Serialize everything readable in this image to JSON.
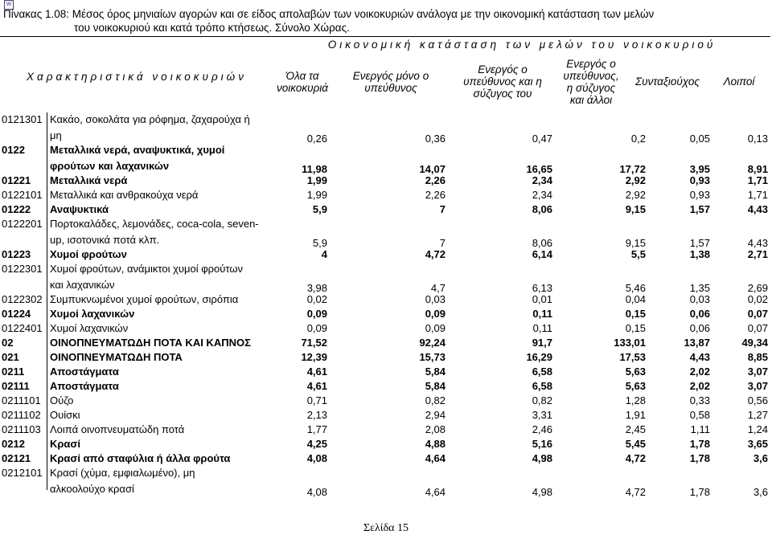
{
  "title_lines": [
    "Πίνακας 1.08: Μέσος όρος μηνιαίων αγορών και σε είδος απολαβών των νοικοκυριών ανάλογα με την οικονομική κατάσταση των μελών",
    "του νοικοκυριού  και κατά τρόπο κτήσεως. Σύνολο Χώρας."
  ],
  "header": {
    "group": "Οικονομική κατάσταση των μελών του νοικοκυριού",
    "row_label": "Χαρακτηριστικά νοικοκυριών",
    "columns": [
      "Όλα τα νοικοκυριά",
      "Ενεργός μόνο ο υπεύθυνος",
      "Ενεργός ο υπεύθυνος και η σύζυγος του",
      "Ενεργός ο υπεύθυνος, η σύζυγος και άλλοι",
      "Συνταξιούχος",
      "Λοιποί"
    ]
  },
  "rows": [
    {
      "code": "0121301",
      "bold": false,
      "lines": [
        "Κακάο, σοκολάτα για ρόφημα, ζαχαρούχα ή",
        "μη"
      ],
      "values": [
        "0,26",
        "0,36",
        "0,47",
        "0,2",
        "0,05",
        "0,13"
      ]
    },
    {
      "code": "0122",
      "bold": true,
      "lines": [
        "Μεταλλικά νερά,  αναψυκτικά, χυμοί",
        "φρούτων και λαχανικών"
      ],
      "values": [
        "11,98",
        "14,07",
        "16,65",
        "17,72",
        "3,95",
        "8,91"
      ]
    },
    {
      "code": "01221",
      "bold": true,
      "lines": [
        "Μεταλλικά νερά"
      ],
      "values": [
        "1,99",
        "2,26",
        "2,34",
        "2,92",
        "0,93",
        "1,71"
      ]
    },
    {
      "code": "0122101",
      "bold": false,
      "lines": [
        "Μεταλλικά και ανθρακούχα νερά"
      ],
      "values": [
        "1,99",
        "2,26",
        "2,34",
        "2,92",
        "0,93",
        "1,71"
      ]
    },
    {
      "code": "01222",
      "bold": true,
      "lines": [
        "Αναψυκτικά"
      ],
      "values": [
        "5,9",
        "7",
        "8,06",
        "9,15",
        "1,57",
        "4,43"
      ]
    },
    {
      "code": "0122201",
      "bold": false,
      "lines": [
        "Πορτοκαλάδες, λεμονάδες, coca-cola, seven-",
        "up, ισοτονικά ποτά κλπ."
      ],
      "values": [
        "5,9",
        "7",
        "8,06",
        "9,15",
        "1,57",
        "4,43"
      ]
    },
    {
      "code": "01223",
      "bold": true,
      "lines": [
        "Χυμοί φρούτων"
      ],
      "values": [
        "4",
        "4,72",
        "6,14",
        "5,5",
        "1,38",
        "2,71"
      ]
    },
    {
      "code": "0122301",
      "bold": false,
      "lines": [
        "Χυμοί φρούτων, ανάμικτοι χυμοί φρούτων",
        "και λαχανικών"
      ],
      "values": [
        "3,98",
        "4,7",
        "6,13",
        "5,46",
        "1,35",
        "2,69"
      ]
    },
    {
      "code": "0122302",
      "bold": false,
      "lines": [
        "Συμπυκνωμένοι χυμοί φρούτων, σιρόπια"
      ],
      "values": [
        "0,02",
        "0,03",
        "0,01",
        "0,04",
        "0,03",
        "0,02"
      ]
    },
    {
      "code": "01224",
      "bold": true,
      "lines": [
        "Χυμοί λαχανικών"
      ],
      "values": [
        "0,09",
        "0,09",
        "0,11",
        "0,15",
        "0,06",
        "0,07"
      ]
    },
    {
      "code": "0122401",
      "bold": false,
      "lines": [
        "Χυμοί λαχανικών"
      ],
      "values": [
        "0,09",
        "0,09",
        "0,11",
        "0,15",
        "0,06",
        "0,07"
      ]
    },
    {
      "code": "02",
      "bold": true,
      "lines": [
        "ΟΙΝΟΠΝΕΥΜΑΤΩΔΗ ΠΟΤΑ ΚΑΙ ΚΑΠΝΟΣ"
      ],
      "values": [
        "71,52",
        "92,24",
        "91,7",
        "133,01",
        "13,87",
        "49,34"
      ]
    },
    {
      "code": "021",
      "bold": true,
      "lines": [
        "ΟΙΝΟΠΝΕΥΜΑΤΩΔΗ ΠΟΤΑ"
      ],
      "values": [
        "12,39",
        "15,73",
        "16,29",
        "17,53",
        "4,43",
        "8,85"
      ]
    },
    {
      "code": "0211",
      "bold": true,
      "lines": [
        "Αποστάγματα"
      ],
      "values": [
        "4,61",
        "5,84",
        "6,58",
        "5,63",
        "2,02",
        "3,07"
      ]
    },
    {
      "code": "02111",
      "bold": true,
      "lines": [
        "Αποστάγματα"
      ],
      "values": [
        "4,61",
        "5,84",
        "6,58",
        "5,63",
        "2,02",
        "3,07"
      ]
    },
    {
      "code": "0211101",
      "bold": false,
      "lines": [
        "Ούζο"
      ],
      "values": [
        "0,71",
        "0,82",
        "0,82",
        "1,28",
        "0,33",
        "0,56"
      ]
    },
    {
      "code": "0211102",
      "bold": false,
      "lines": [
        "Ουίσκι"
      ],
      "values": [
        "2,13",
        "2,94",
        "3,31",
        "1,91",
        "0,58",
        "1,27"
      ]
    },
    {
      "code": "0211103",
      "bold": false,
      "lines": [
        "Λοιπά οινοπνευματώδη ποτά"
      ],
      "values": [
        "1,77",
        "2,08",
        "2,46",
        "2,45",
        "1,11",
        "1,24"
      ]
    },
    {
      "code": "0212",
      "bold": true,
      "lines": [
        "Κρασί"
      ],
      "values": [
        "4,25",
        "4,88",
        "5,16",
        "5,45",
        "1,78",
        "3,65"
      ]
    },
    {
      "code": "02121",
      "bold": true,
      "lines": [
        "Κρασί από σταφύλια ή άλλα φρούτα"
      ],
      "values": [
        "4,08",
        "4,64",
        "4,98",
        "4,72",
        "1,78",
        "3,6"
      ]
    },
    {
      "code": "0212101",
      "bold": false,
      "lines": [
        "Κρασί  (χύμα, εμφιαλωμένο), μη",
        "αλκοολούχο κρασί"
      ],
      "values": [
        "4,08",
        "4,64",
        "4,98",
        "4,72",
        "1,78",
        "3,6"
      ]
    }
  ],
  "footer": "Σελίδα 15"
}
